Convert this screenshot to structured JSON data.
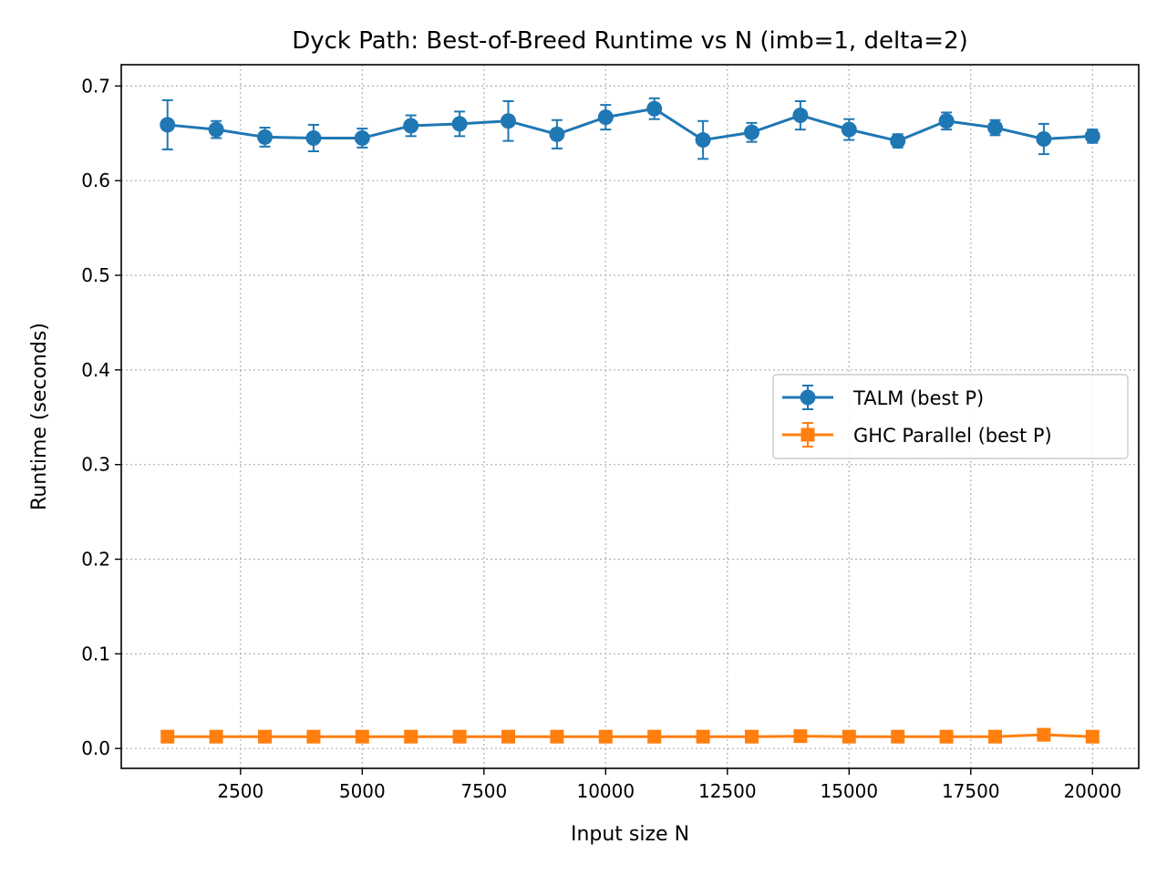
{
  "chart_data": {
    "type": "line",
    "title": "Dyck Path: Best-of-Breed Runtime vs N  (imb=1, delta=2)",
    "xlabel": "Input size N",
    "ylabel": "Runtime (seconds)",
    "xlim": [
      50,
      20950
    ],
    "ylim": [
      -0.021,
      0.7225
    ],
    "xticks": [
      2500,
      5000,
      7500,
      10000,
      12500,
      15000,
      17500,
      20000
    ],
    "xtick_labels": [
      "2500",
      "5000",
      "7500",
      "10000",
      "12500",
      "15000",
      "17500",
      "20000"
    ],
    "yticks": [
      0.0,
      0.1,
      0.2,
      0.3,
      0.4,
      0.5,
      0.6,
      0.7
    ],
    "ytick_labels": [
      "0.0",
      "0.1",
      "0.2",
      "0.3",
      "0.4",
      "0.5",
      "0.6",
      "0.7"
    ],
    "grid": true,
    "legend_position": "center-right",
    "x": [
      1000,
      2000,
      3000,
      4000,
      5000,
      6000,
      7000,
      8000,
      9000,
      10000,
      11000,
      12000,
      13000,
      14000,
      15000,
      16000,
      17000,
      18000,
      19000,
      20000
    ],
    "series": [
      {
        "name": "TALM (best P)",
        "color": "#1f77b4",
        "marker": "circle",
        "values": [
          0.659,
          0.654,
          0.646,
          0.645,
          0.645,
          0.658,
          0.66,
          0.663,
          0.649,
          0.667,
          0.676,
          0.643,
          0.651,
          0.669,
          0.654,
          0.642,
          0.663,
          0.656,
          0.644,
          0.647
        ],
        "errors": [
          0.026,
          0.009,
          0.01,
          0.014,
          0.01,
          0.011,
          0.013,
          0.021,
          0.015,
          0.013,
          0.011,
          0.02,
          0.01,
          0.015,
          0.011,
          0.007,
          0.009,
          0.008,
          0.016,
          0.007
        ]
      },
      {
        "name": "GHC Parallel (best P)",
        "color": "#ff7f0e",
        "marker": "square",
        "values": [
          0.0125,
          0.0125,
          0.0125,
          0.0125,
          0.0125,
          0.0125,
          0.0125,
          0.0125,
          0.0125,
          0.0125,
          0.0125,
          0.0125,
          0.0125,
          0.013,
          0.0125,
          0.0125,
          0.0125,
          0.0125,
          0.0145,
          0.0125
        ],
        "errors": [
          0.001,
          0.001,
          0.001,
          0.001,
          0.001,
          0.001,
          0.001,
          0.001,
          0.001,
          0.001,
          0.001,
          0.001,
          0.001,
          0.001,
          0.001,
          0.001,
          0.001,
          0.001,
          0.001,
          0.001
        ]
      }
    ]
  }
}
